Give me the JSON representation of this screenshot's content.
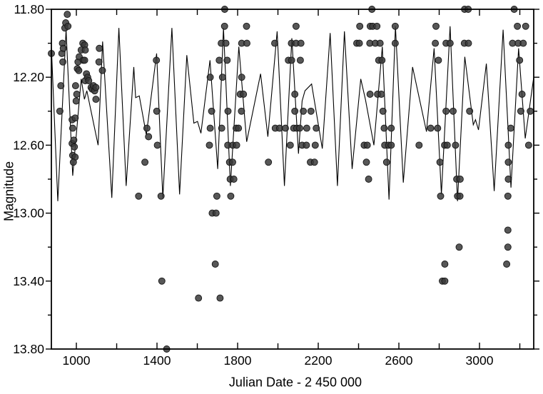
{
  "chart_data": {
    "type": "scatter",
    "title": "",
    "xlabel": "Julian Date - 2 450 000",
    "ylabel": "Magnitude",
    "xlim": [
      876,
      3269
    ],
    "ylim_top": 11.8,
    "ylim_bottom": 13.8,
    "grid": false,
    "legend": "none",
    "colors": {
      "background": "#ffffff",
      "axis": "#000000",
      "text": "#000000",
      "curve": "#000000",
      "point_fill": "#3a3a3a",
      "point_stroke": "#161616"
    },
    "axes": {
      "x_major_ticks": [
        {
          "value": 1000,
          "label": "1000"
        },
        {
          "value": 1400,
          "label": "1400"
        },
        {
          "value": 1800,
          "label": "1800"
        },
        {
          "value": 2200,
          "label": "2200"
        },
        {
          "value": 2600,
          "label": "2600"
        },
        {
          "value": 3000,
          "label": "3000"
        }
      ],
      "x_minor_ticks": [
        1200,
        1600,
        2000,
        2400,
        2800,
        3200
      ],
      "y_major_ticks": [
        {
          "value": 11.8,
          "label": "11.80"
        },
        {
          "value": 12.2,
          "label": "12.20"
        },
        {
          "value": 12.6,
          "label": "12.60"
        },
        {
          "value": 13.0,
          "label": "13.00"
        },
        {
          "value": 13.4,
          "label": "13.40"
        },
        {
          "value": 13.8,
          "label": "13.80"
        }
      ],
      "y_minor_ticks": [
        12.0,
        12.4,
        12.8,
        13.2,
        13.6
      ]
    },
    "observations": [
      [
        876,
        12.06
      ],
      [
        918,
        12.4
      ],
      [
        923,
        12.25
      ],
      [
        928,
        12.06
      ],
      [
        933,
        12.11
      ],
      [
        931,
        12.0
      ],
      [
        935,
        12.03
      ],
      [
        943,
        11.91
      ],
      [
        947,
        11.88
      ],
      [
        955,
        11.83
      ],
      [
        958,
        11.9
      ],
      [
        979,
        12.45
      ],
      [
        994,
        12.44
      ],
      [
        982,
        12.5
      ],
      [
        979,
        12.59
      ],
      [
        987,
        12.57
      ],
      [
        990,
        12.61
      ],
      [
        982,
        12.66
      ],
      [
        994,
        12.67
      ],
      [
        985,
        12.7
      ],
      [
        996,
        12.25
      ],
      [
        1002,
        12.3
      ],
      [
        999,
        12.34
      ],
      [
        1005,
        12.15
      ],
      [
        1012,
        12.16
      ],
      [
        1008,
        12.11
      ],
      [
        1014,
        12.08
      ],
      [
        1024,
        12.04
      ],
      [
        1032,
        12.0
      ],
      [
        1041,
        12.01
      ],
      [
        1044,
        12.04
      ],
      [
        1034,
        12.1
      ],
      [
        1041,
        12.1
      ],
      [
        1044,
        12.22
      ],
      [
        1050,
        12.18
      ],
      [
        1056,
        12.2
      ],
      [
        1061,
        12.22
      ],
      [
        1073,
        12.26
      ],
      [
        1079,
        12.27
      ],
      [
        1085,
        12.25
      ],
      [
        1091,
        12.28
      ],
      [
        1097,
        12.26
      ],
      [
        1097,
        12.33
      ],
      [
        1112,
        12.11
      ],
      [
        1114,
        12.03
      ],
      [
        1129,
        12.16
      ],
      [
        1309,
        12.9
      ],
      [
        1340,
        12.7
      ],
      [
        1350,
        12.5
      ],
      [
        1358,
        12.55
      ],
      [
        1397,
        12.1
      ],
      [
        1399,
        12.4
      ],
      [
        1402,
        12.6
      ],
      [
        1420,
        12.9
      ],
      [
        1424,
        13.4
      ],
      [
        1448,
        13.8
      ],
      [
        1606,
        13.5
      ],
      [
        1660,
        12.6
      ],
      [
        1664,
        12.5
      ],
      [
        1664,
        12.2
      ],
      [
        1671,
        12.4
      ],
      [
        1674,
        13.0
      ],
      [
        1693,
        13.0
      ],
      [
        1689,
        13.3
      ],
      [
        1697,
        12.9
      ],
      [
        1713,
        13.5
      ],
      [
        1709,
        12.1
      ],
      [
        1719,
        12.0
      ],
      [
        1721,
        12.5
      ],
      [
        1725,
        12.2
      ],
      [
        1735,
        11.9
      ],
      [
        1736,
        11.8
      ],
      [
        1742,
        12.0
      ],
      [
        1748,
        12.1
      ],
      [
        1751,
        12.6
      ],
      [
        1752,
        12.4
      ],
      [
        1760,
        12.7
      ],
      [
        1763,
        12.8
      ],
      [
        1766,
        12.9
      ],
      [
        1775,
        12.7
      ],
      [
        1776,
        12.6
      ],
      [
        1781,
        12.8
      ],
      [
        1793,
        12.5
      ],
      [
        1795,
        12.6
      ],
      [
        1804,
        12.5
      ],
      [
        1813,
        12.3
      ],
      [
        1820,
        12.0
      ],
      [
        1820,
        12.2
      ],
      [
        1819,
        12.4
      ],
      [
        1829,
        12.3
      ],
      [
        1844,
        11.9
      ],
      [
        1846,
        12.0
      ],
      [
        1953,
        12.7
      ],
      [
        1984,
        12.0
      ],
      [
        1987,
        12.5
      ],
      [
        2008,
        12.5
      ],
      [
        2037,
        12.5
      ],
      [
        2052,
        12.1
      ],
      [
        2061,
        12.6
      ],
      [
        2067,
        12.0
      ],
      [
        2068,
        12.1
      ],
      [
        2078,
        12.5
      ],
      [
        2084,
        12.3
      ],
      [
        2084,
        12.4
      ],
      [
        2090,
        11.9
      ],
      [
        2090,
        12.0
      ],
      [
        2093,
        12.5
      ],
      [
        2108,
        12.5
      ],
      [
        2111,
        12.1
      ],
      [
        2114,
        12.0
      ],
      [
        2120,
        12.6
      ],
      [
        2126,
        12.4
      ],
      [
        2141,
        12.6
      ],
      [
        2143,
        12.5
      ],
      [
        2161,
        12.7
      ],
      [
        2164,
        12.4
      ],
      [
        2181,
        12.7
      ],
      [
        2185,
        12.6
      ],
      [
        2190,
        12.5
      ],
      [
        2391,
        12.0
      ],
      [
        2404,
        12.0
      ],
      [
        2406,
        11.9
      ],
      [
        2428,
        12.6
      ],
      [
        2443,
        12.6
      ],
      [
        2439,
        12.7
      ],
      [
        2450,
        12.8
      ],
      [
        2456,
        12.0
      ],
      [
        2457,
        12.3
      ],
      [
        2458,
        11.9
      ],
      [
        2470,
        11.9
      ],
      [
        2466,
        11.8
      ],
      [
        2483,
        12.0
      ],
      [
        2491,
        11.9
      ],
      [
        2494,
        12.3
      ],
      [
        2500,
        12.1
      ],
      [
        2507,
        12.0
      ],
      [
        2513,
        12.3
      ],
      [
        2516,
        12.1
      ],
      [
        2521,
        12.4
      ],
      [
        2527,
        12.5
      ],
      [
        2530,
        12.6
      ],
      [
        2539,
        12.7
      ],
      [
        2549,
        12.6
      ],
      [
        2562,
        12.5
      ],
      [
        2562,
        12.6
      ],
      [
        2582,
        11.9
      ],
      [
        2582,
        12.0
      ],
      [
        2700,
        12.6
      ],
      [
        2758,
        12.5
      ],
      [
        2781,
        12.0
      ],
      [
        2784,
        11.9
      ],
      [
        2792,
        12.5
      ],
      [
        2796,
        12.1
      ],
      [
        2804,
        12.7
      ],
      [
        2807,
        12.9
      ],
      [
        2816,
        13.4
      ],
      [
        2827,
        12.6
      ],
      [
        2828,
        13.3
      ],
      [
        2828,
        13.4
      ],
      [
        2834,
        12.0
      ],
      [
        2834,
        12.4
      ],
      [
        2840,
        12.6
      ],
      [
        2854,
        12.0
      ],
      [
        2869,
        12.4
      ],
      [
        2881,
        12.6
      ],
      [
        2887,
        12.8
      ],
      [
        2891,
        12.9
      ],
      [
        2899,
        13.2
      ],
      [
        2903,
        12.9
      ],
      [
        2904,
        12.8
      ],
      [
        2925,
        12.0
      ],
      [
        2926,
        11.8
      ],
      [
        2944,
        11.8
      ],
      [
        2945,
        12.0
      ],
      [
        2951,
        12.4
      ],
      [
        3135,
        13.3
      ],
      [
        3141,
        13.2
      ],
      [
        3141,
        13.1
      ],
      [
        3141,
        12.9
      ],
      [
        3143,
        12.8
      ],
      [
        3143,
        12.7
      ],
      [
        3143,
        12.6
      ],
      [
        3155,
        12.5
      ],
      [
        3164,
        12.0
      ],
      [
        3172,
        11.8
      ],
      [
        3188,
        11.9
      ],
      [
        3192,
        12.0
      ],
      [
        3199,
        12.1
      ],
      [
        3205,
        12.4
      ],
      [
        3211,
        12.3
      ],
      [
        3217,
        12.0
      ],
      [
        3229,
        11.9
      ],
      [
        3244,
        12.6
      ],
      [
        3252,
        12.4
      ]
    ],
    "model_curve": [
      [
        876,
        12.02
      ],
      [
        908,
        12.93
      ],
      [
        949,
        11.92
      ],
      [
        982,
        12.78
      ],
      [
        1024,
        12.21
      ],
      [
        1040,
        12.33
      ],
      [
        1052,
        12.28
      ],
      [
        1108,
        12.6
      ],
      [
        1130,
        11.99
      ],
      [
        1176,
        12.91
      ],
      [
        1211,
        11.91
      ],
      [
        1247,
        12.84
      ],
      [
        1285,
        12.14
      ],
      [
        1294,
        12.32
      ],
      [
        1312,
        12.31
      ],
      [
        1347,
        12.54
      ],
      [
        1398,
        12.06
      ],
      [
        1429,
        12.91
      ],
      [
        1474,
        11.91
      ],
      [
        1512,
        12.89
      ],
      [
        1548,
        12.07
      ],
      [
        1583,
        12.47
      ],
      [
        1601,
        12.46
      ],
      [
        1618,
        12.53
      ],
      [
        1663,
        12.1
      ],
      [
        1701,
        12.74
      ],
      [
        1730,
        11.91
      ],
      [
        1764,
        12.84
      ],
      [
        1806,
        12.02
      ],
      [
        1845,
        12.58
      ],
      [
        1914,
        12.18
      ],
      [
        1950,
        12.55
      ],
      [
        1996,
        11.93
      ],
      [
        2032,
        12.84
      ],
      [
        2069,
        11.97
      ],
      [
        2102,
        12.65
      ],
      [
        2120,
        12.34
      ],
      [
        2134,
        12.28
      ],
      [
        2167,
        12.24
      ],
      [
        2220,
        12.62
      ],
      [
        2259,
        11.94
      ],
      [
        2295,
        12.84
      ],
      [
        2330,
        11.93
      ],
      [
        2368,
        12.74
      ],
      [
        2411,
        12.21
      ],
      [
        2434,
        12.33
      ],
      [
        2476,
        12.6
      ],
      [
        2518,
        12.02
      ],
      [
        2551,
        12.92
      ],
      [
        2583,
        11.9
      ],
      [
        2622,
        12.82
      ],
      [
        2668,
        12.14
      ],
      [
        2737,
        12.52
      ],
      [
        2775,
        12.03
      ],
      [
        2811,
        12.89
      ],
      [
        2854,
        11.9
      ],
      [
        2891,
        12.93
      ],
      [
        2927,
        12.08
      ],
      [
        2969,
        12.48
      ],
      [
        2980,
        12.45
      ],
      [
        2995,
        12.51
      ],
      [
        3034,
        12.12
      ],
      [
        3073,
        12.87
      ],
      [
        3117,
        11.92
      ],
      [
        3156,
        12.85
      ],
      [
        3194,
        12.03
      ],
      [
        3227,
        12.56
      ],
      [
        3269,
        12.2
      ]
    ]
  }
}
